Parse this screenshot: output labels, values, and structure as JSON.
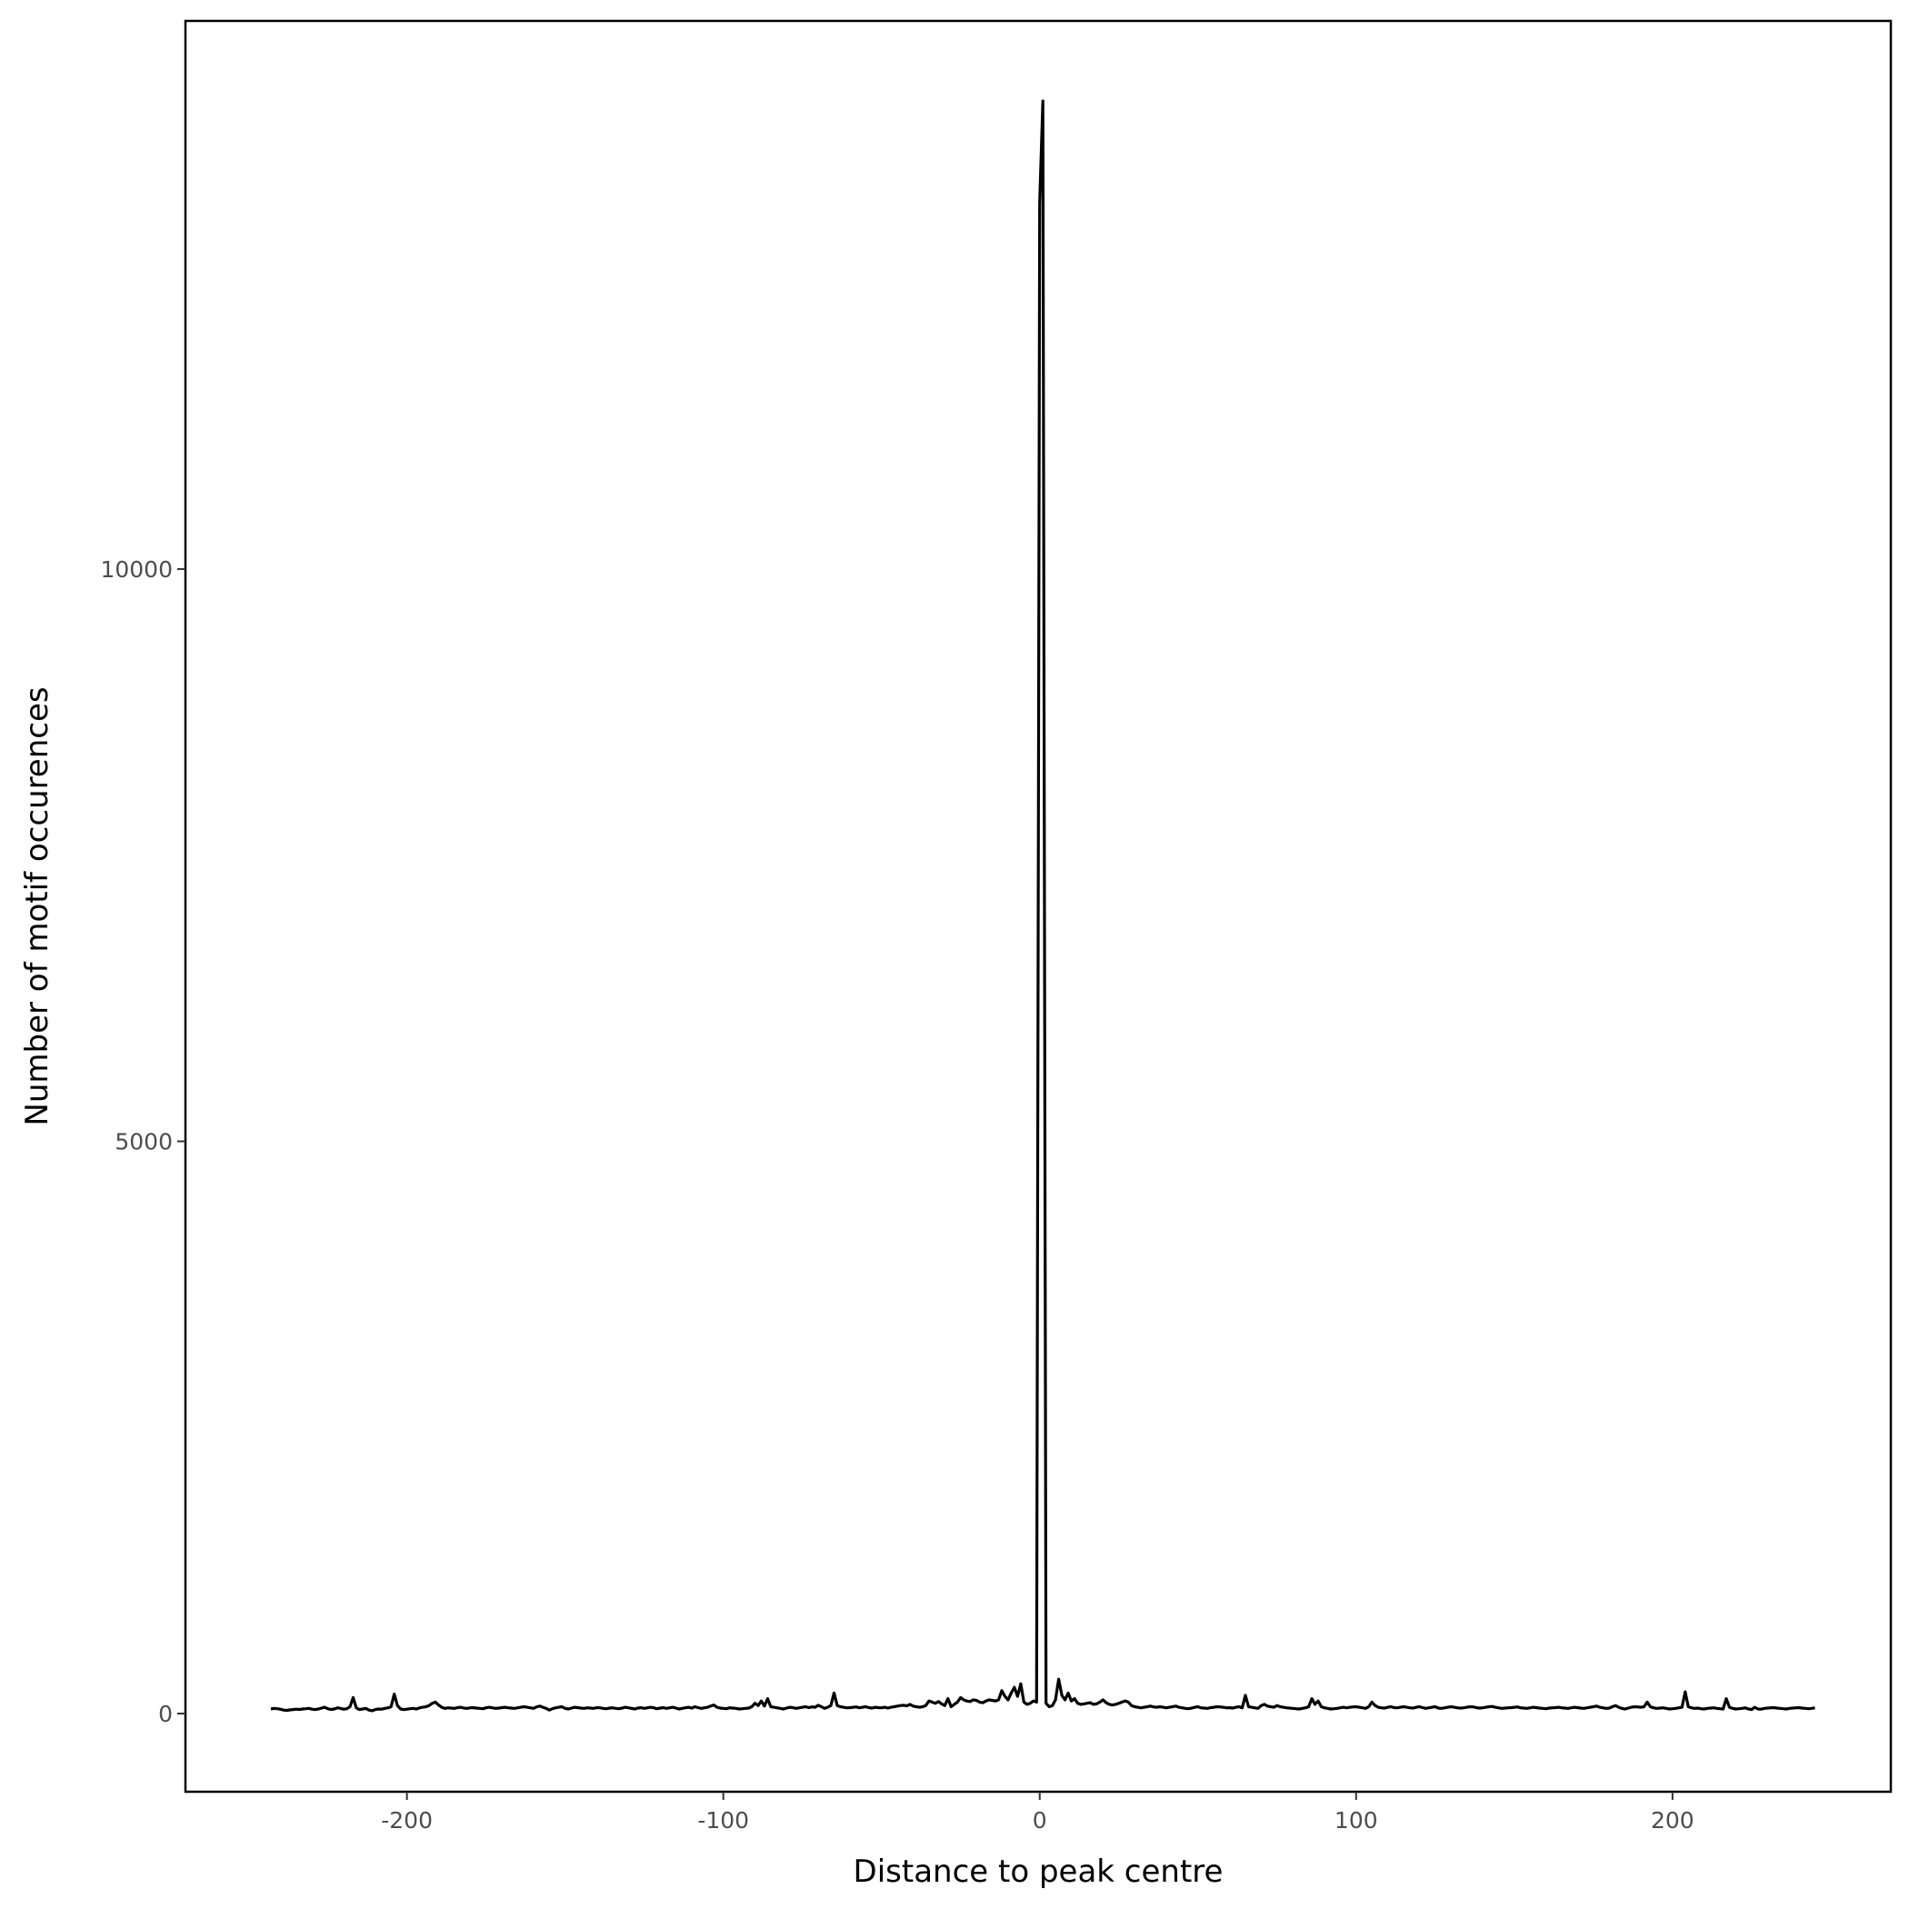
{
  "chart_data": {
    "type": "line",
    "title": "",
    "xlabel": "Distance to peak centre",
    "ylabel": "Number of motif occurences",
    "xlim": [
      -270,
      269
    ],
    "ylim": [
      -683,
      14790
    ],
    "xticks": [
      -200,
      -100,
      0,
      100,
      200
    ],
    "xtick_labels": [
      "-200",
      "-100",
      "0",
      "100",
      "200"
    ],
    "yticks": [
      0,
      5000,
      10000
    ],
    "ytick_labels": [
      "0",
      "5000",
      "10000"
    ],
    "grid": false,
    "line_color": "#000000",
    "x_start": -243,
    "x_step": 1,
    "series": [
      {
        "values": [
          40,
          45,
          42,
          38,
          30,
          28,
          32,
          35,
          38,
          36,
          40,
          42,
          45,
          38,
          35,
          40,
          48,
          55,
          42,
          36,
          40,
          50,
          45,
          38,
          42,
          60,
          140,
          50,
          35,
          40,
          45,
          30,
          25,
          35,
          40,
          38,
          45,
          50,
          60,
          170,
          70,
          40,
          35,
          38,
          42,
          45,
          40,
          50,
          55,
          60,
          70,
          90,
          100,
          75,
          55,
          45,
          50,
          48,
          45,
          52,
          55,
          48,
          45,
          50,
          52,
          48,
          45,
          42,
          50,
          55,
          50,
          45,
          48,
          52,
          55,
          50,
          48,
          45,
          50,
          55,
          60,
          55,
          50,
          45,
          58,
          65,
          55,
          45,
          30,
          42,
          50,
          55,
          60,
          45,
          40,
          48,
          55,
          52,
          48,
          45,
          50,
          48,
          45,
          52,
          50,
          45,
          42,
          48,
          50,
          45,
          42,
          48,
          55,
          50,
          45,
          40,
          48,
          52,
          45,
          50,
          55,
          50,
          42,
          48,
          52,
          45,
          50,
          55,
          48,
          40,
          45,
          50,
          55,
          48,
          60,
          52,
          45,
          50,
          55,
          65,
          75,
          55,
          48,
          45,
          42,
          50,
          48,
          45,
          40,
          42,
          45,
          48,
          60,
          90,
          70,
          110,
          65,
          130,
          60,
          55,
          50,
          45,
          40,
          48,
          55,
          52,
          45,
          50,
          55,
          60,
          52,
          58,
          55,
          72,
          60,
          45,
          55,
          70,
          180,
          70,
          60,
          55,
          50,
          52,
          55,
          58,
          50,
          55,
          60,
          52,
          48,
          55,
          52,
          50,
          55,
          48,
          55,
          60,
          65,
          70,
          72,
          68,
          80,
          65,
          60,
          55,
          60,
          70,
          110,
          100,
          90,
          105,
          85,
          70,
          130,
          60,
          80,
          100,
          140,
          120,
          110,
          105,
          120,
          115,
          100,
          95,
          110,
          120,
          115,
          110,
          120,
          200,
          150,
          120,
          180,
          230,
          150,
          260,
          100,
          80,
          90,
          110,
          100,
          13200,
          14090,
          90,
          60,
          70,
          120,
          300,
          160,
          120,
          180,
          110,
          130,
          90,
          80,
          85,
          90,
          95,
          80,
          85,
          100,
          120,
          95,
          80,
          75,
          80,
          90,
          100,
          110,
          100,
          70,
          60,
          55,
          50,
          55,
          60,
          65,
          58,
          55,
          60,
          55,
          50,
          55,
          60,
          65,
          55,
          50,
          45,
          42,
          48,
          55,
          60,
          50,
          48,
          45,
          52,
          55,
          60,
          58,
          55,
          50,
          52,
          48,
          55,
          60,
          50,
          160,
          60,
          55,
          50,
          45,
          70,
          80,
          65,
          60,
          55,
          70,
          60,
          55,
          50,
          48,
          45,
          42,
          40,
          45,
          50,
          60,
          130,
          80,
          110,
          60,
          50,
          45,
          40,
          42,
          45,
          50,
          55,
          50,
          55,
          58,
          60,
          55,
          50,
          45,
          60,
          100,
          70,
          55,
          50,
          48,
          55,
          60,
          52,
          50,
          55,
          60,
          55,
          50,
          48,
          55,
          60,
          52,
          45,
          50,
          55,
          60,
          48,
          45,
          50,
          55,
          60,
          55,
          50,
          48,
          50,
          55,
          60,
          58,
          52,
          48,
          50,
          55,
          60,
          62,
          55,
          50,
          45,
          48,
          50,
          52,
          55,
          58,
          50,
          48,
          45,
          50,
          55,
          52,
          48,
          45,
          42,
          48,
          50,
          52,
          55,
          50,
          48,
          45,
          50,
          55,
          52,
          48,
          45,
          50,
          55,
          60,
          65,
          55,
          50,
          45,
          48,
          60,
          70,
          55,
          45,
          40,
          48,
          55,
          60,
          58,
          55,
          60,
          100,
          60,
          50,
          45,
          48,
          50,
          45,
          40,
          42,
          45,
          50,
          55,
          190,
          60,
          50,
          45,
          48,
          42,
          40,
          45,
          48,
          50,
          45,
          42,
          40,
          130,
          55,
          45,
          40,
          42,
          45,
          50,
          40,
          35,
          55,
          40,
          38,
          45,
          48,
          50,
          52,
          48,
          45,
          42,
          40,
          45,
          48,
          50,
          52,
          48,
          45,
          42,
          45,
          50
        ]
      }
    ]
  }
}
